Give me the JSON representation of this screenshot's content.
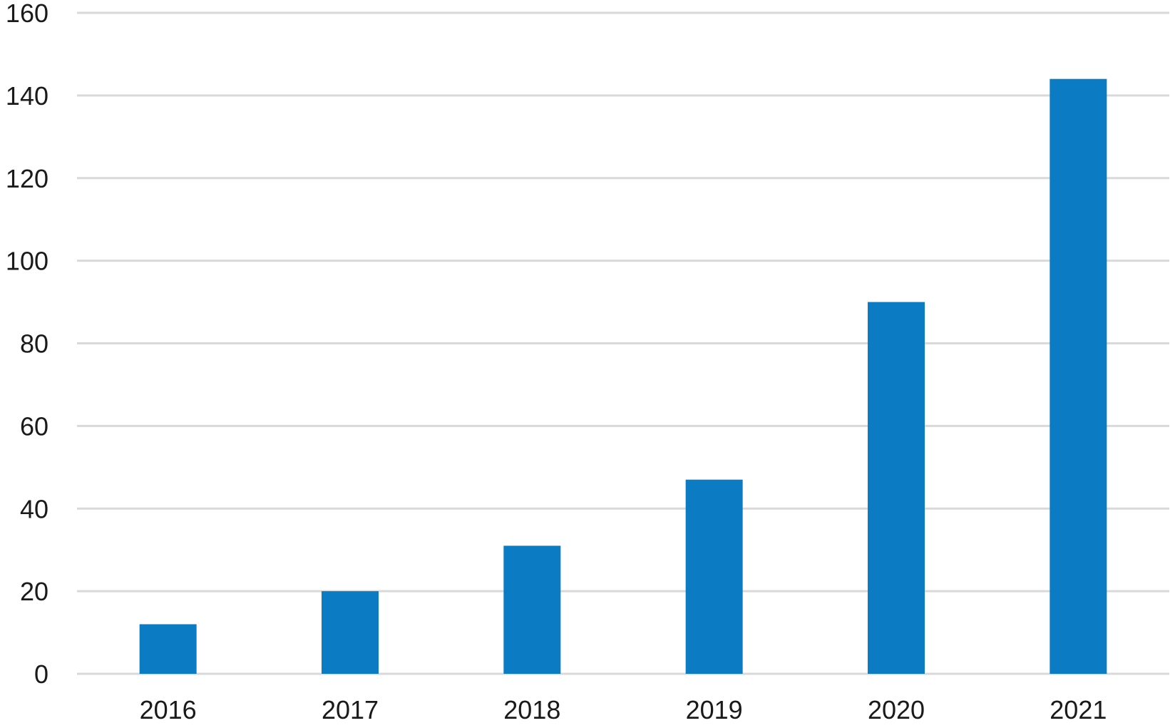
{
  "chart_data": {
    "type": "bar",
    "title": "",
    "xlabel": "",
    "ylabel": "",
    "categories": [
      "2016",
      "2017",
      "2018",
      "2019",
      "2020",
      "2021"
    ],
    "values": [
      12,
      20,
      31,
      47,
      90,
      144
    ],
    "ylim": [
      0,
      160
    ],
    "yticks": [
      0,
      20,
      40,
      60,
      80,
      100,
      120,
      140,
      160
    ],
    "ytick_labels": [
      "0",
      "20",
      "40",
      "60",
      "80",
      "100",
      "120",
      "140",
      "160"
    ],
    "grid": true,
    "legend": "none",
    "bar_color": "#0b7cc4",
    "grid_color": "#d9d9d9"
  }
}
